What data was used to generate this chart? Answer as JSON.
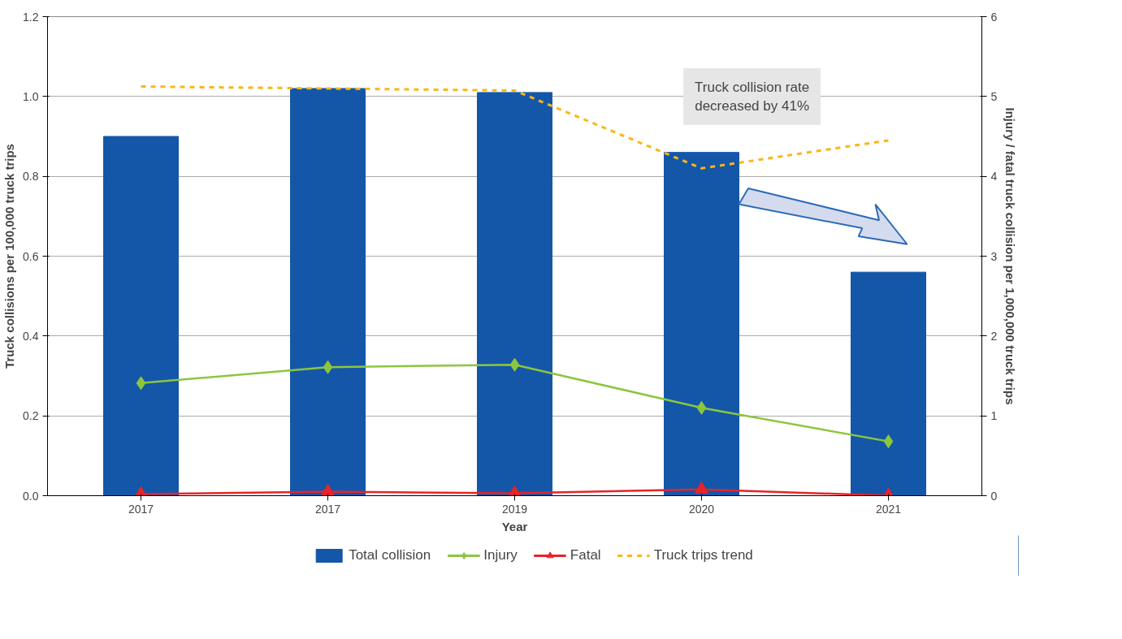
{
  "chart_data": {
    "type": "bar",
    "xlabel": "Year",
    "ylabel": "Truck collisions per 100,000 truck trips",
    "y2label": "Injury / fatal truck collision per 1,000,000 truck trips",
    "categories": [
      "2017",
      "2017",
      "2019",
      "2020",
      "2021"
    ],
    "series": [
      {
        "name": "Total collision",
        "color": "#1457a8",
        "values": [
          0.9,
          1.02,
          1.01,
          0.86,
          0.56
        ]
      },
      {
        "name": "Injury",
        "type": "line",
        "axis": "y2",
        "color": "#8cc63f",
        "marker": "diamond",
        "line_style": "solid",
        "values": [
          1.41,
          1.61,
          1.64,
          1.1,
          0.68
        ]
      },
      {
        "name": "Fatal",
        "type": "line",
        "axis": "y2",
        "color": "#e8232a",
        "marker": "triangle",
        "line_style": "solid",
        "values": [
          0.02,
          0.05,
          0.03,
          0.08,
          0.0
        ]
      },
      {
        "name": "Truck trips trend",
        "type": "line",
        "color": "#fbb616",
        "marker": "none",
        "line_style": "dashed",
        "values": [
          1.025,
          1.02,
          1.015,
          0.82,
          0.89
        ]
      }
    ],
    "ylim": [
      0,
      1.2
    ],
    "yticks": [
      {
        "value": 0,
        "label": "0.0"
      },
      {
        "value": 0.2,
        "label": "0.2"
      },
      {
        "value": 0.4,
        "label": "0.4"
      },
      {
        "value": 0.6,
        "label": "0.6"
      },
      {
        "value": 0.8,
        "label": "0.8"
      },
      {
        "value": 1.0,
        "label": "1.0"
      },
      {
        "value": 1.2,
        "label": "1.2"
      }
    ],
    "y2lim": [
      0,
      6
    ],
    "y2ticks": [
      0,
      1,
      2,
      3,
      4,
      5,
      6
    ],
    "grid": "y",
    "legend": "bottom",
    "annotations": [
      "Truck collision rate\ndecreased by 41%"
    ]
  }
}
